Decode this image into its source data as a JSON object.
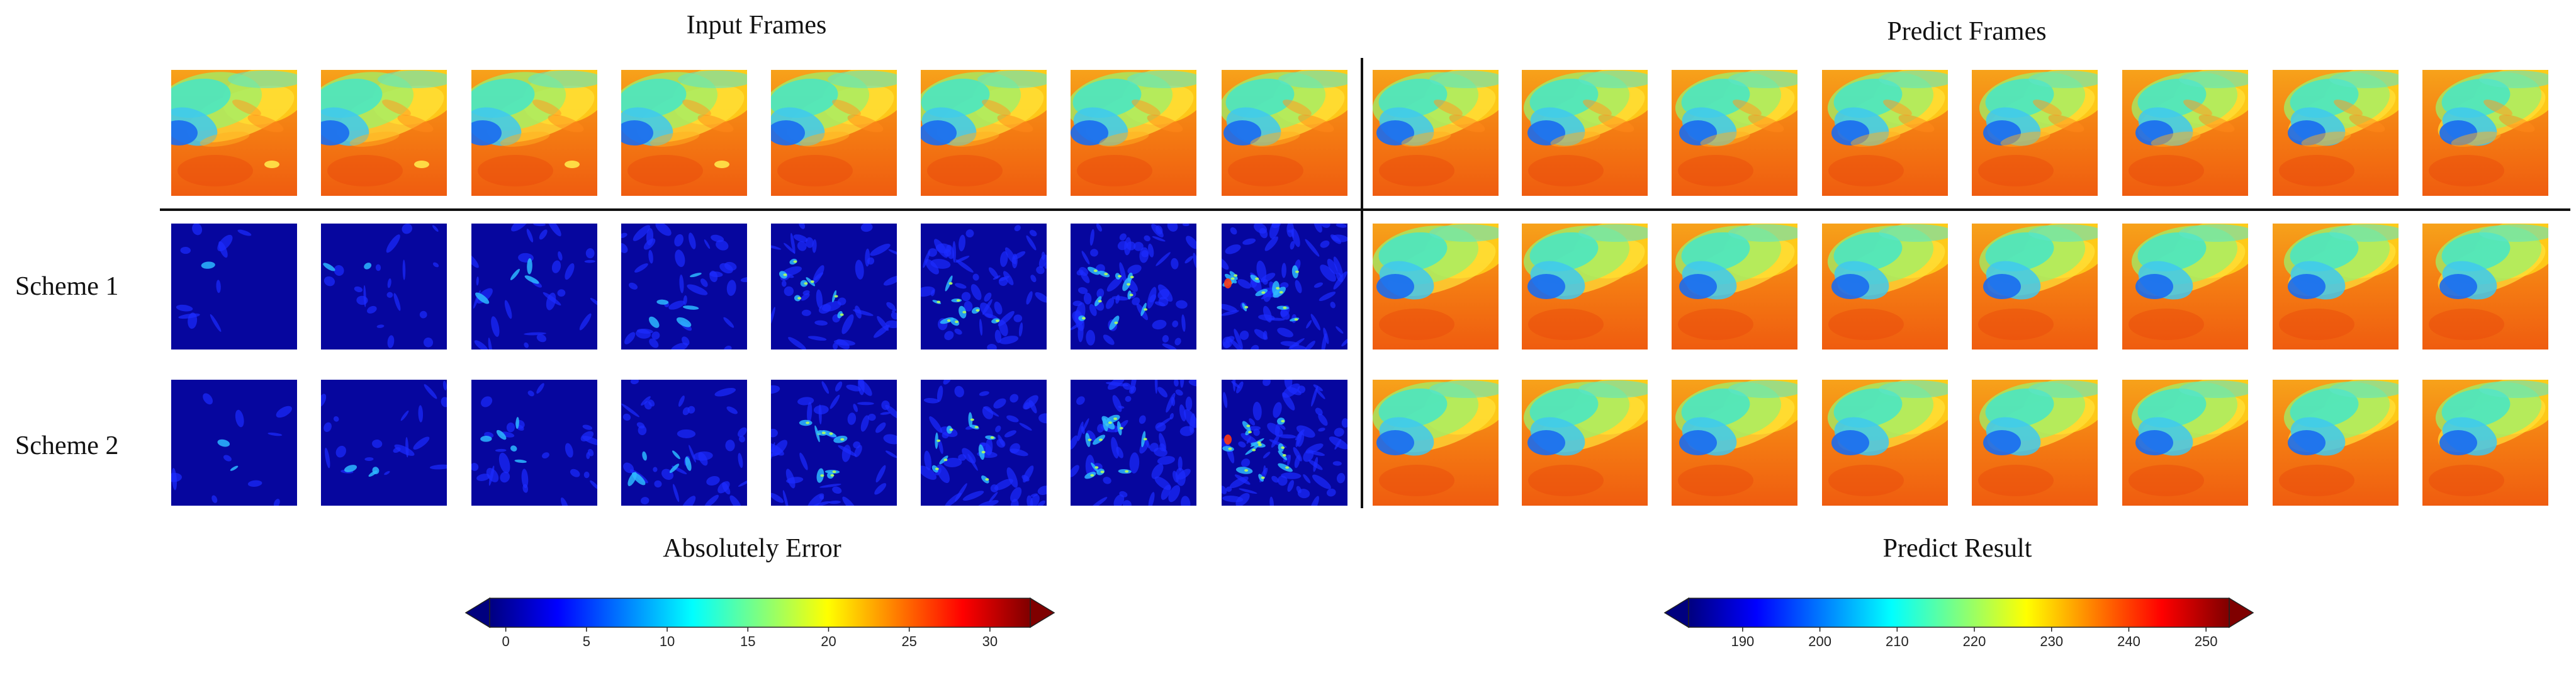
{
  "titles": {
    "input_frames": "Input Frames",
    "predict_frames": "Predict Frames",
    "absolutely_error": "Absolutely Error",
    "predict_result": "Predict Result"
  },
  "row_labels": {
    "scheme1": "Scheme 1",
    "scheme2": "Scheme 2"
  },
  "colorbars": {
    "error": {
      "colormap": "jet",
      "ticks": [
        "0",
        "5",
        "10",
        "15",
        "20",
        "25",
        "30"
      ],
      "range": [
        -1,
        32.5
      ],
      "extend": "both"
    },
    "result": {
      "colormap": "jet",
      "ticks": [
        "190",
        "200",
        "210",
        "220",
        "230",
        "240",
        "250"
      ],
      "range": [
        183,
        253
      ],
      "extend": "both"
    }
  },
  "jet_stops": [
    "#00007f",
    "#0000ff",
    "#007fff",
    "#00ffff",
    "#7fff7f",
    "#ffff00",
    "#ff7f00",
    "#ff0000",
    "#7f0000"
  ],
  "panels": {
    "input_count": 8,
    "predict_count": 8,
    "rows": [
      "ground-truth",
      "scheme-1",
      "scheme-2"
    ]
  }
}
